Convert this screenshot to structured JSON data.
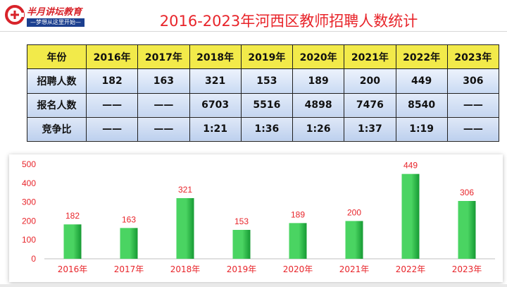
{
  "brand": {
    "name": "半月讲坛教育",
    "slogan": "—梦想从这里开始—",
    "color": "#d8232a"
  },
  "title": "2016-2023年河西区教师招聘人数统计",
  "table": {
    "columns": [
      "年份",
      "2016年",
      "2017年",
      "2018年",
      "2019年",
      "2020年",
      "2021年",
      "2022年",
      "2023年"
    ],
    "rows": [
      [
        "招聘人数",
        "182",
        "163",
        "321",
        "153",
        "189",
        "200",
        "449",
        "306"
      ],
      [
        "报名人数",
        "——",
        "——",
        "6703",
        "5516",
        "4898",
        "7476",
        "8540",
        "——"
      ],
      [
        "竞争比",
        "——",
        "——",
        "1:21",
        "1:36",
        "1:26",
        "1:37",
        "1:19",
        "——"
      ]
    ]
  },
  "chart_data": {
    "type": "bar",
    "categories": [
      "2016年",
      "2017年",
      "2018年",
      "2019年",
      "2020年",
      "2021年",
      "2022年",
      "2023年"
    ],
    "values": [
      182,
      163,
      321,
      153,
      189,
      200,
      449,
      306
    ],
    "yticks": [
      0,
      100,
      200,
      300,
      400,
      500
    ],
    "ylim": [
      0,
      500
    ],
    "grid": false,
    "legend": "none",
    "colors": {
      "bar_light": "#4ad462",
      "bar_dark": "#169a33",
      "label": "#e8242a",
      "axis_text": "#e8242a",
      "axis_line": "#bfbfbf"
    }
  }
}
